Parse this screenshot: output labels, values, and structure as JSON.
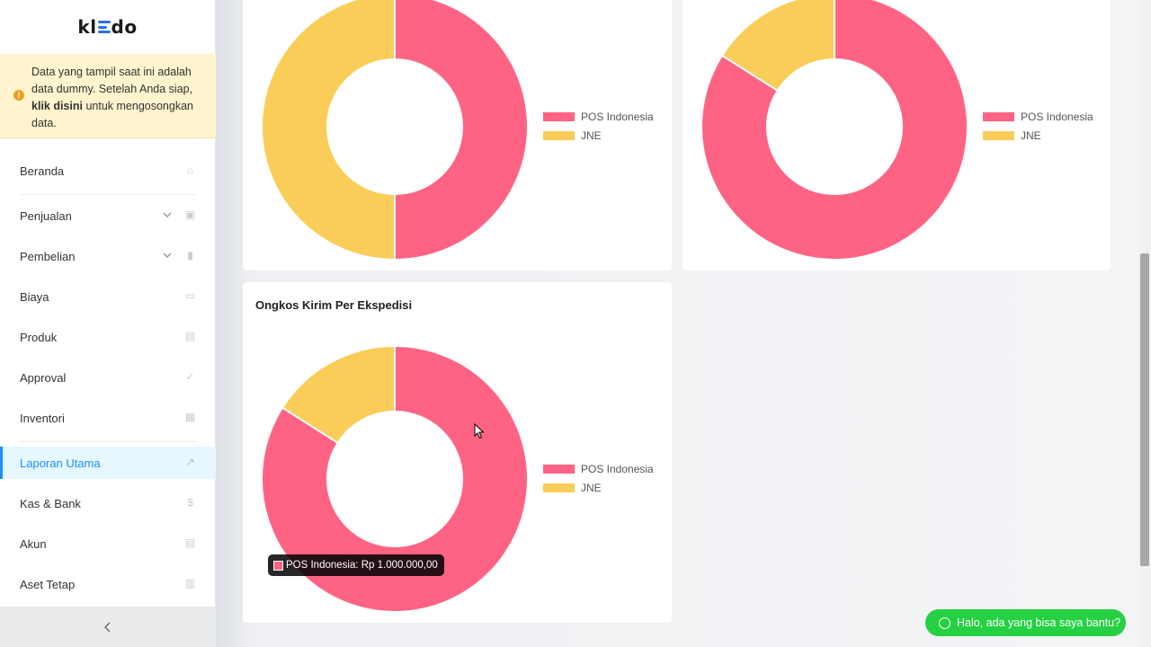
{
  "app": {
    "logo_text": "kledo"
  },
  "notice": {
    "text_before": "Data yang tampil saat ini adalah data dummy. Setelah Anda siap,",
    "link": "klik disini",
    "text_after": "untuk mengosongkan data."
  },
  "sidebar": {
    "items": [
      {
        "label": "Beranda",
        "icon": "home-icon"
      },
      {
        "label": "Penjualan",
        "icon": "basket-icon",
        "expandable": true
      },
      {
        "label": "Pembelian",
        "icon": "bag-icon",
        "expandable": true
      },
      {
        "label": "Biaya",
        "icon": "card-icon"
      },
      {
        "label": "Produk",
        "icon": "box-icon"
      },
      {
        "label": "Approval",
        "icon": "check-icon"
      },
      {
        "label": "Inventori",
        "icon": "warehouse-icon"
      },
      {
        "label": "Laporan Utama",
        "icon": "chart-icon",
        "active": true
      },
      {
        "label": "Kas & Bank",
        "icon": "dollar-icon"
      },
      {
        "label": "Akun",
        "icon": "ledger-icon"
      },
      {
        "label": "Aset Tetap",
        "icon": "building-icon"
      }
    ],
    "collapse_icon": "chevron-left-icon"
  },
  "colors": {
    "pos": "#ff6384",
    "jne": "#f9cd57",
    "accent": "#1890ff",
    "whatsapp": "#25d043"
  },
  "charts": [
    {
      "title": "",
      "chart_data": {
        "type": "pie",
        "categories": [
          "POS Indonesia",
          "JNE"
        ],
        "values": [
          50,
          50
        ],
        "legend": "right"
      }
    },
    {
      "title": "",
      "chart_data": {
        "type": "pie",
        "categories": [
          "POS Indonesia",
          "JNE"
        ],
        "values": [
          84,
          16
        ],
        "legend": "right"
      }
    },
    {
      "title": "Ongkos Kirim Per Ekspedisi",
      "chart_data": {
        "type": "pie",
        "categories": [
          "POS Indonesia",
          "JNE"
        ],
        "values": [
          84,
          16
        ],
        "legend": "right"
      }
    }
  ],
  "tooltip": {
    "text": "POS Indonesia: Rp 1.000.000,00"
  },
  "whatsapp": {
    "label": "Halo, ada yang bisa saya bantu?",
    "icon": "whatsapp-icon"
  }
}
